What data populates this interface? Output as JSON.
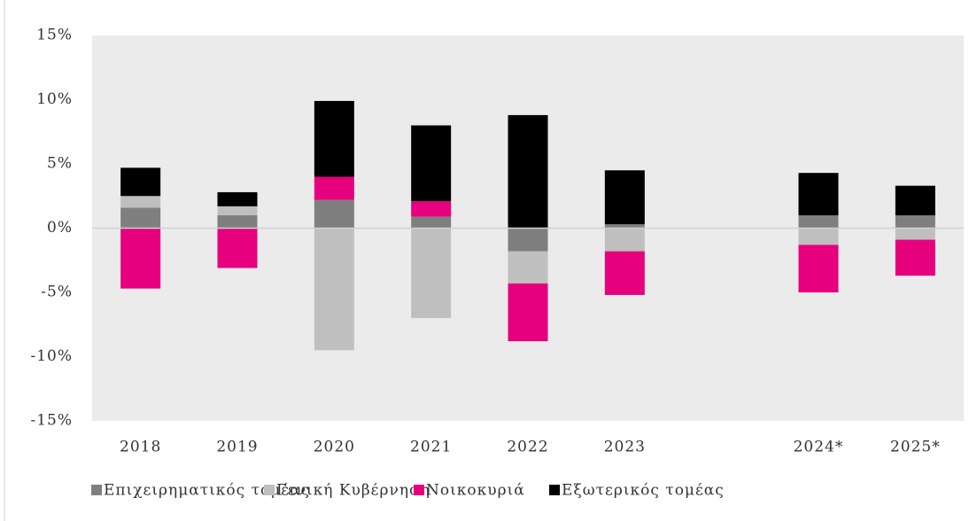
{
  "chart_data": {
    "type": "stacked_bar",
    "categories": [
      "2018",
      "2019",
      "2020",
      "2021",
      "2022",
      "2023",
      null,
      "2024*",
      "2025*"
    ],
    "series": [
      {
        "name": "Επιχειρηματικός τομέας",
        "color": "#7f7f7f",
        "values": [
          1.6,
          1.0,
          2.2,
          0.9,
          -1.8,
          0.3,
          null,
          1.0,
          1.0
        ]
      },
      {
        "name": "Γενική Κυβέρνηση",
        "color": "#bfbfbf",
        "values": [
          0.9,
          0.7,
          -9.5,
          -7.0,
          -2.5,
          -1.8,
          null,
          -1.3,
          -0.9
        ]
      },
      {
        "name": "Νοικοκυριά",
        "color": "#e6007e",
        "values": [
          -4.7,
          -3.1,
          1.8,
          1.2,
          -4.5,
          -3.4,
          null,
          -3.7,
          -2.8
        ]
      },
      {
        "name": "Εξωτερικός τομέας",
        "color": "#000000",
        "values": [
          2.2,
          1.1,
          5.9,
          5.9,
          8.8,
          4.2,
          null,
          3.3,
          2.3
        ]
      }
    ],
    "ylim": [
      -15,
      15
    ],
    "yticks": [
      {
        "value": -15,
        "label": "-15%"
      },
      {
        "value": -10,
        "label": "-10%"
      },
      {
        "value": -5,
        "label": "-5%"
      },
      {
        "value": 0,
        "label": "0%"
      },
      {
        "value": 5,
        "label": "5%"
      },
      {
        "value": 10,
        "label": "10%"
      },
      {
        "value": 15,
        "label": "15%"
      }
    ],
    "grid": false,
    "legend": "bottom"
  }
}
